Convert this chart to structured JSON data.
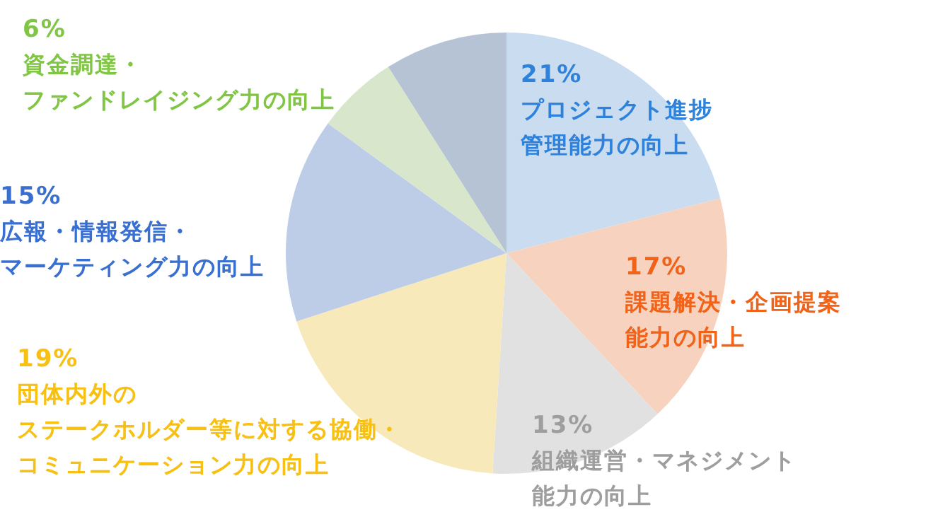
{
  "chart_data": {
    "type": "pie",
    "categories": [
      "プロジェクト進捗管理能力の向上",
      "課題解決・企画提案能力の向上",
      "組織運営・マネジメント能力の向上",
      "団体内外のステークホルダー等に対する協働・コミュニケーション力の向上",
      "広報・情報発信・マーケティング力の向上",
      "資金調達・ファンドレイジング力の向上",
      null
    ],
    "values": [
      21,
      17,
      13,
      19,
      15,
      6,
      9
    ],
    "value_labels": [
      "21%",
      "17%",
      "13%",
      "19%",
      "15%",
      "6%",
      null
    ],
    "colors": [
      "#c9dcf0",
      "#f6d2bf",
      "#e1e1e1",
      "#f8e9ba",
      "#bdcce7",
      "#d8e7cb",
      "#b5c3d5"
    ]
  }
}
